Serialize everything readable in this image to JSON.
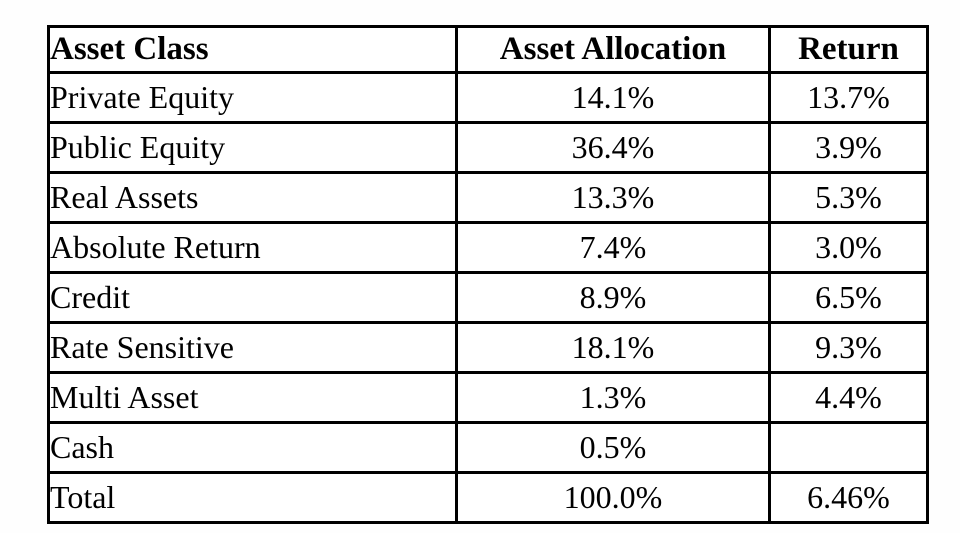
{
  "chart_data": {
    "type": "table",
    "title": "",
    "columns": [
      "Asset Class",
      "Asset Allocation",
      "Return"
    ],
    "rows": [
      [
        "Private Equity",
        "14.1%",
        "13.7%"
      ],
      [
        "Public Equity",
        "36.4%",
        "3.9%"
      ],
      [
        "Real Assets",
        "13.3%",
        "5.3%"
      ],
      [
        "Absolute Return",
        "7.4%",
        "3.0%"
      ],
      [
        "Credit",
        "8.9%",
        "6.5%"
      ],
      [
        "Rate Sensitive",
        "18.1%",
        "9.3%"
      ],
      [
        "Multi Asset",
        "1.3%",
        "4.4%"
      ],
      [
        "Cash",
        "0.5%",
        ""
      ],
      [
        "Total",
        "100.0%",
        "6.46%"
      ]
    ],
    "layout": {
      "grid": "on",
      "header_bold": true,
      "first_column_align": "left",
      "value_columns_align": "center"
    }
  },
  "colors": {
    "border": "#000000",
    "text": "#000000",
    "background": "#ffffff"
  }
}
